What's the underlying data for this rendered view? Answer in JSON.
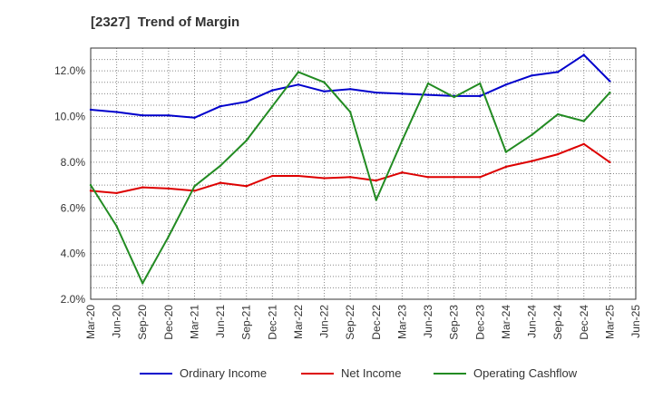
{
  "chart_title": "[2327]  Trend of Margin",
  "chart_data": {
    "type": "line",
    "title": "[2327]  Trend of Margin",
    "xlabel": "",
    "ylabel": "",
    "x_ticks": [
      "Mar-20",
      "Jun-20",
      "Sep-20",
      "Dec-20",
      "Mar-21",
      "Jun-21",
      "Sep-21",
      "Dec-21",
      "Mar-22",
      "Jun-22",
      "Sep-22",
      "Dec-22",
      "Mar-23",
      "Jun-23",
      "Sep-23",
      "Dec-23",
      "Mar-24",
      "Jun-24",
      "Sep-24",
      "Dec-24",
      "Mar-25",
      "Jun-25"
    ],
    "categories": [
      "Mar-20",
      "Jun-20",
      "Sep-20",
      "Dec-20",
      "Mar-21",
      "Jun-21",
      "Sep-21",
      "Dec-21",
      "Mar-22",
      "Jun-22",
      "Sep-22",
      "Dec-22",
      "Mar-23",
      "Jun-23",
      "Sep-23",
      "Dec-23",
      "Mar-24",
      "Jun-24",
      "Sep-24",
      "Dec-24",
      "Mar-25"
    ],
    "y_ticks": [
      "2.0%",
      "4.0%",
      "6.0%",
      "8.0%",
      "10.0%",
      "12.0%"
    ],
    "ylim": [
      2.0,
      13.0
    ],
    "grid": true,
    "legend_position": "bottom",
    "series": [
      {
        "name": "Ordinary Income",
        "color": "#0000cc",
        "values": [
          10.3,
          10.2,
          10.05,
          10.05,
          9.95,
          10.45,
          10.65,
          11.15,
          11.4,
          11.1,
          11.2,
          11.05,
          11.0,
          10.95,
          10.9,
          10.9,
          11.4,
          11.8,
          11.95,
          12.7,
          11.55
        ]
      },
      {
        "name": "Net Income",
        "color": "#dd0000",
        "values": [
          6.75,
          6.65,
          6.9,
          6.85,
          6.75,
          7.1,
          6.95,
          7.4,
          7.4,
          7.3,
          7.35,
          7.2,
          7.55,
          7.35,
          7.35,
          7.35,
          7.8,
          8.05,
          8.35,
          8.8,
          8.0
        ]
      },
      {
        "name": "Operating Cashflow",
        "color": "#228b22",
        "values": [
          7.0,
          5.2,
          2.7,
          4.75,
          6.95,
          7.85,
          8.95,
          10.45,
          11.95,
          11.5,
          10.2,
          6.35,
          8.95,
          11.45,
          10.85,
          11.45,
          8.45,
          9.2,
          10.1,
          9.8,
          11.05
        ]
      }
    ]
  }
}
